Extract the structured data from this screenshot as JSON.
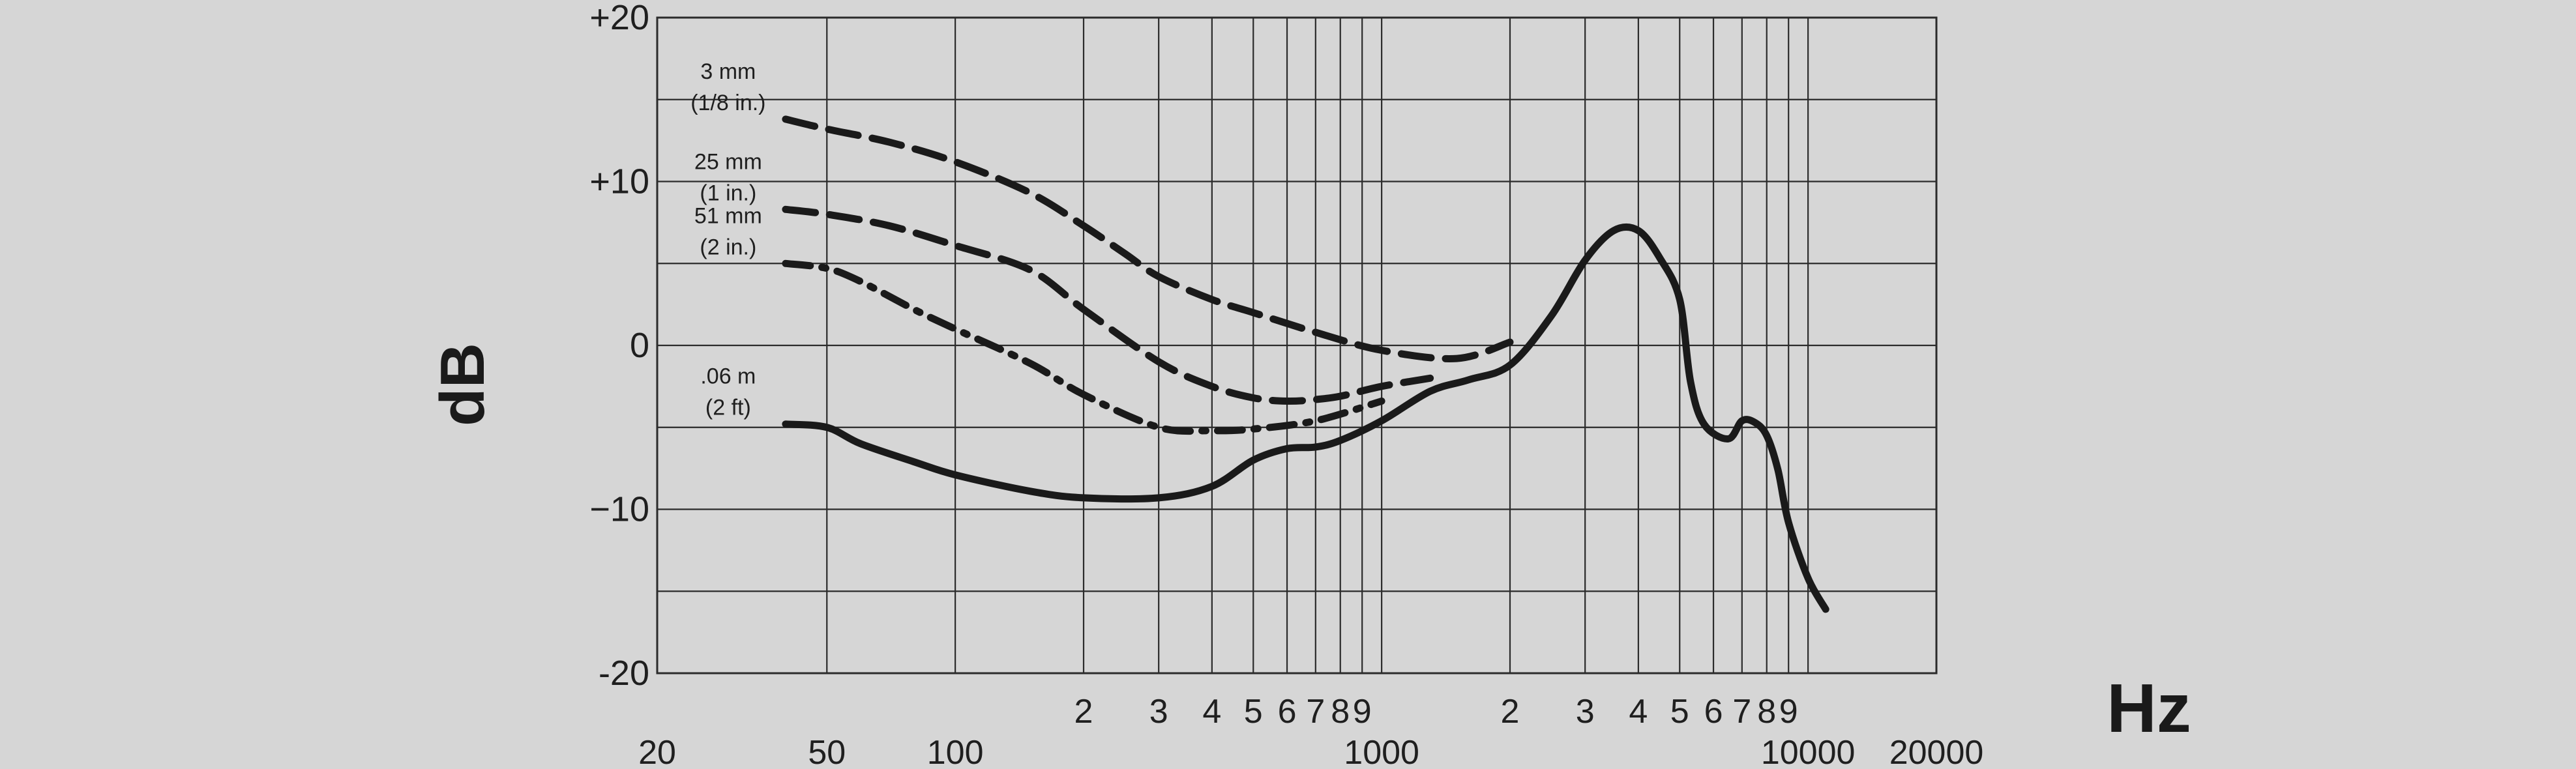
{
  "chart_data": {
    "type": "line",
    "title": "",
    "xlabel": "Hz",
    "ylabel": "dB",
    "x_scale": "log",
    "xlim": [
      20,
      20000
    ],
    "ylim": [
      -20,
      20
    ],
    "grid": true,
    "y_ticks": [
      {
        "value": 20,
        "label": "+20"
      },
      {
        "value": 10,
        "label": "+10"
      },
      {
        "value": 0,
        "label": "0"
      },
      {
        "value": -10,
        "label": "−10"
      },
      {
        "value": -20,
        "label": "-20"
      }
    ],
    "y_minor_gridlines": [
      15,
      5,
      -5,
      -15
    ],
    "x_major_labels": [
      {
        "value": 20,
        "label": "20"
      },
      {
        "value": 50,
        "label": "50"
      },
      {
        "value": 100,
        "label": "100"
      },
      {
        "value": 1000,
        "label": "1000"
      },
      {
        "value": 10000,
        "label": "10000"
      },
      {
        "value": 20000,
        "label": "20000"
      }
    ],
    "x_minor_labels": [
      {
        "value": 200,
        "label": "2"
      },
      {
        "value": 300,
        "label": "3"
      },
      {
        "value": 400,
        "label": "4"
      },
      {
        "value": 500,
        "label": "5"
      },
      {
        "value": 600,
        "label": "6"
      },
      {
        "value": 700,
        "label": "7"
      },
      {
        "value": 800,
        "label": "8"
      },
      {
        "value": 900,
        "label": "9"
      },
      {
        "value": 2000,
        "label": "2"
      },
      {
        "value": 3000,
        "label": "3"
      },
      {
        "value": 4000,
        "label": "4"
      },
      {
        "value": 5000,
        "label": "5"
      },
      {
        "value": 6000,
        "label": "6"
      },
      {
        "value": 7000,
        "label": "7"
      },
      {
        "value": 8000,
        "label": "8"
      },
      {
        "value": 9000,
        "label": "9"
      }
    ],
    "x_gridlines": [
      50,
      100,
      200,
      300,
      400,
      500,
      600,
      700,
      800,
      900,
      1000,
      2000,
      3000,
      4000,
      5000,
      6000,
      7000,
      8000,
      9000,
      10000
    ],
    "series": [
      {
        "name": "3 mm (1/8 in.)",
        "label_lines": [
          "3 mm",
          "(1/8 in.)"
        ],
        "style": "dashed",
        "x": [
          40,
          50,
          70,
          100,
          150,
          200,
          250,
          300,
          400,
          500,
          700,
          1000,
          1500,
          2000
        ],
        "y": [
          13.8,
          13.2,
          12.4,
          11.2,
          9.3,
          7.3,
          5.6,
          4.2,
          2.8,
          2.0,
          0.8,
          -0.3,
          -0.8,
          0.2
        ]
      },
      {
        "name": "25 mm (1 in.)",
        "label_lines": [
          "25 mm",
          "(1 in.)"
        ],
        "style": "dashed",
        "x": [
          40,
          50,
          70,
          100,
          150,
          200,
          300,
          400,
          500,
          600,
          700,
          800,
          1000,
          1300
        ],
        "y": [
          8.3,
          8.0,
          7.3,
          6.1,
          4.6,
          2.2,
          -1.0,
          -2.5,
          -3.2,
          -3.4,
          -3.3,
          -3.1,
          -2.5,
          -2.0
        ]
      },
      {
        "name": "51 mm (2 in.)",
        "label_lines": [
          "51 mm",
          "(2 in.)"
        ],
        "style": "dash-dot",
        "x": [
          40,
          50,
          60,
          80,
          100,
          150,
          200,
          300,
          400,
          500,
          700,
          1000
        ],
        "y": [
          5.0,
          4.7,
          3.9,
          2.2,
          1.0,
          -1.1,
          -3.0,
          -5.0,
          -5.2,
          -5.1,
          -4.6,
          -3.4
        ]
      },
      {
        "name": ".06 m (2 ft)",
        "label_lines": [
          ".06 m",
          "(2 ft)"
        ],
        "style": "solid",
        "x": [
          40,
          50,
          60,
          80,
          100,
          150,
          200,
          300,
          400,
          500,
          600,
          700,
          800,
          1000,
          1300,
          1600,
          2000,
          2500,
          3000,
          3500,
          4000,
          4500,
          5000,
          5300,
          5700,
          6500,
          7000,
          7500,
          8000,
          8500,
          9000,
          10000,
          11000
        ],
        "y": [
          -4.8,
          -5.0,
          -6.0,
          -7.1,
          -7.9,
          -8.9,
          -9.3,
          -9.3,
          -8.6,
          -7.0,
          -6.3,
          -6.2,
          -5.8,
          -4.6,
          -2.8,
          -2.1,
          -1.2,
          1.8,
          5.2,
          7.0,
          7.0,
          5.3,
          2.8,
          -2.2,
          -4.8,
          -5.7,
          -4.6,
          -4.7,
          -5.5,
          -7.6,
          -10.8,
          -14.2,
          -16.1
        ]
      }
    ]
  }
}
